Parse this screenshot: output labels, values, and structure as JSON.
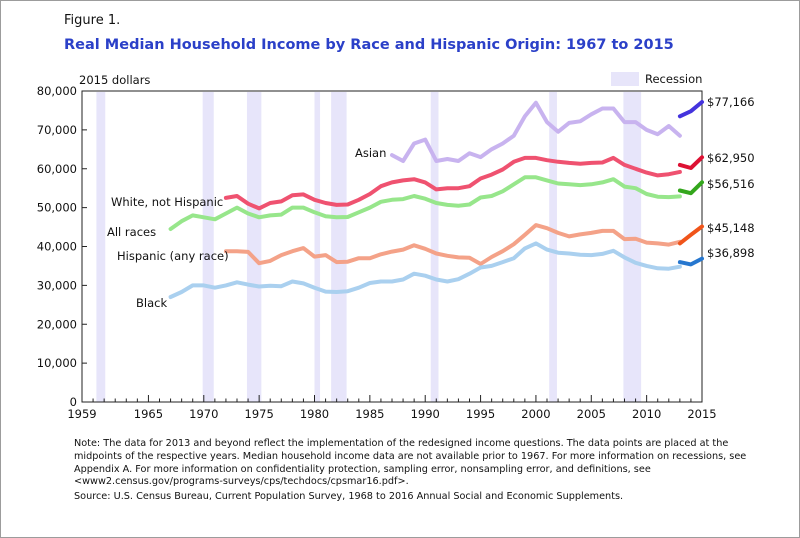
{
  "figure_label": "Figure 1.",
  "title": "Real Median Household Income by Race and Hispanic Origin: 1967 to 2015",
  "note": "Note: The data for 2013 and beyond reflect the implementation of the redesigned income questions. The data points are placed at the midpoints of the respective years. Median household income data are not available prior to 1967. For more information on recessions, see Appendix A. For more information on confidentiality protection, sampling error, nonsampling error, and definitions, see <www2.census.gov/programs-surveys/cps/techdocs/cpsmar16.pdf>.",
  "source": "Source: U.S. Census Bureau, Current Population Survey, 1968 to 2016 Annual Social and Economic Supplements.",
  "chart_data": {
    "type": "line",
    "title": "Real Median Household Income by Race and Hispanic Origin: 1967 to 2015",
    "ylabel": "2015 dollars",
    "xlim": [
      1959,
      2015
    ],
    "ylim": [
      0,
      80000
    ],
    "x_ticks": [
      1959,
      1965,
      1970,
      1975,
      1980,
      1985,
      1990,
      1995,
      2000,
      2005,
      2010,
      2015
    ],
    "y_ticks": [
      {
        "value": 0,
        "label": "0"
      },
      {
        "value": 10000,
        "label": "10,000"
      },
      {
        "value": 20000,
        "label": "20,000"
      },
      {
        "value": 30000,
        "label": "30,000"
      },
      {
        "value": 40000,
        "label": "40,000"
      },
      {
        "value": 50000,
        "label": "50,000"
      },
      {
        "value": 60000,
        "label": "60,000"
      },
      {
        "value": 70000,
        "label": "70,000"
      },
      {
        "value": 80000,
        "label": "80,000"
      }
    ],
    "grid": false,
    "legend": {
      "label": "Recession",
      "position": "top-right"
    },
    "recessions": [
      [
        1960.3,
        1961.1
      ],
      [
        1969.9,
        1970.9
      ],
      [
        1973.9,
        1975.2
      ],
      [
        1980.0,
        1980.5
      ],
      [
        1981.5,
        1982.9
      ],
      [
        1990.5,
        1991.2
      ],
      [
        2001.2,
        2001.9
      ],
      [
        2007.9,
        2009.5
      ]
    ],
    "series": [
      {
        "name": "Asian",
        "color": "#c8b3ef",
        "color_redesign": "#4433dd",
        "end_label": "$77,166",
        "x": [
          1987,
          1988,
          1989,
          1990,
          1991,
          1992,
          1993,
          1994,
          1995,
          1996,
          1997,
          1998,
          1999,
          2000,
          2001,
          2002,
          2003,
          2004,
          2005,
          2006,
          2007,
          2008,
          2009,
          2010,
          2011,
          2012,
          2013
        ],
        "y": [
          63500,
          62000,
          66500,
          67500,
          62000,
          62500,
          62000,
          64000,
          63000,
          65000,
          66500,
          68500,
          73500,
          77000,
          72000,
          69500,
          71800,
          72200,
          74000,
          75500,
          75500,
          72000,
          72000,
          70000,
          68900,
          71000,
          68500
        ],
        "x_redesign": [
          2013,
          2014,
          2015
        ],
        "y_redesign": [
          73500,
          74800,
          77166
        ]
      },
      {
        "name": "White, not Hispanic",
        "color": "#ef5270",
        "color_redesign": "#dd1133",
        "end_label": "$62,950",
        "x": [
          1972,
          1973,
          1974,
          1975,
          1976,
          1977,
          1978,
          1979,
          1980,
          1981,
          1982,
          1983,
          1984,
          1985,
          1986,
          1987,
          1988,
          1989,
          1990,
          1991,
          1992,
          1993,
          1994,
          1995,
          1996,
          1997,
          1998,
          1999,
          2000,
          2001,
          2002,
          2003,
          2004,
          2005,
          2006,
          2007,
          2008,
          2009,
          2010,
          2011,
          2012,
          2013
        ],
        "y": [
          52500,
          53000,
          51000,
          49800,
          51200,
          51600,
          53200,
          53400,
          52000,
          51200,
          50700,
          50800,
          52000,
          53500,
          55500,
          56500,
          57000,
          57300,
          56500,
          54700,
          55000,
          55000,
          55500,
          57500,
          58500,
          59800,
          61800,
          62800,
          62800,
          62200,
          61800,
          61500,
          61300,
          61500,
          61600,
          62800,
          61000,
          60000,
          59000,
          58300,
          58600,
          59200
        ],
        "x_redesign": [
          2013,
          2014,
          2015
        ],
        "y_redesign": [
          61000,
          60200,
          62950
        ]
      },
      {
        "name": "All races",
        "color": "#97e68b",
        "color_redesign": "#33a61c",
        "end_label": "$56,516",
        "x": [
          1967,
          1968,
          1969,
          1970,
          1971,
          1972,
          1973,
          1974,
          1975,
          1976,
          1977,
          1978,
          1979,
          1980,
          1981,
          1982,
          1983,
          1984,
          1985,
          1986,
          1987,
          1988,
          1989,
          1990,
          1991,
          1992,
          1993,
          1994,
          1995,
          1996,
          1997,
          1998,
          1999,
          2000,
          2001,
          2002,
          2003,
          2004,
          2005,
          2006,
          2007,
          2008,
          2009,
          2010,
          2011,
          2012,
          2013
        ],
        "y": [
          44500,
          46500,
          48000,
          47500,
          47000,
          48500,
          50000,
          48500,
          47500,
          48000,
          48200,
          50000,
          50000,
          48800,
          47800,
          47500,
          47600,
          48800,
          50000,
          51500,
          52000,
          52200,
          53000,
          52300,
          51200,
          50700,
          50500,
          50800,
          52600,
          53000,
          54200,
          56000,
          57800,
          57800,
          57000,
          56200,
          56000,
          55800,
          56000,
          56500,
          57300,
          55400,
          55000,
          53500,
          52800,
          52700,
          52900
        ],
        "x_redesign": [
          2013,
          2014,
          2015
        ],
        "y_redesign": [
          54400,
          53700,
          56516
        ]
      },
      {
        "name": "Hispanic (any race)",
        "color": "#f4a288",
        "color_redesign": "#f0541a",
        "end_label": "$45,148",
        "x": [
          1972,
          1973,
          1974,
          1975,
          1976,
          1977,
          1978,
          1979,
          1980,
          1981,
          1982,
          1983,
          1984,
          1985,
          1986,
          1987,
          1988,
          1989,
          1990,
          1991,
          1992,
          1993,
          1994,
          1995,
          1996,
          1997,
          1998,
          1999,
          2000,
          2001,
          2002,
          2003,
          2004,
          2005,
          2006,
          2007,
          2008,
          2009,
          2010,
          2011,
          2012,
          2013
        ],
        "y": [
          38800,
          38800,
          38600,
          35700,
          36300,
          37800,
          38800,
          39600,
          37400,
          37800,
          36000,
          36100,
          37000,
          37000,
          38000,
          38700,
          39200,
          40300,
          39400,
          38200,
          37600,
          37200,
          37100,
          35500,
          37300,
          38800,
          40600,
          43000,
          45500,
          44700,
          43500,
          42600,
          43100,
          43500,
          44000,
          44000,
          41900,
          42000,
          41000,
          40800,
          40500,
          41200
        ],
        "x_redesign": [
          2013,
          2014,
          2015
        ],
        "y_redesign": [
          40800,
          43000,
          45148
        ]
      },
      {
        "name": "Black",
        "color": "#aad0ef",
        "color_redesign": "#2677cf",
        "end_label": "$36,898",
        "x": [
          1967,
          1968,
          1969,
          1970,
          1971,
          1972,
          1973,
          1974,
          1975,
          1976,
          1977,
          1978,
          1979,
          1980,
          1981,
          1982,
          1983,
          1984,
          1985,
          1986,
          1987,
          1988,
          1989,
          1990,
          1991,
          1992,
          1993,
          1994,
          1995,
          1996,
          1997,
          1998,
          1999,
          2000,
          2001,
          2002,
          2003,
          2004,
          2005,
          2006,
          2007,
          2008,
          2009,
          2010,
          2011,
          2012,
          2013
        ],
        "y": [
          27000,
          28300,
          30000,
          30000,
          29400,
          30000,
          30800,
          30200,
          29700,
          29900,
          29800,
          31000,
          30500,
          29400,
          28400,
          28300,
          28500,
          29400,
          30600,
          31000,
          31000,
          31500,
          33000,
          32500,
          31500,
          31000,
          31600,
          33000,
          34600,
          35000,
          36000,
          37000,
          39500,
          40800,
          39200,
          38400,
          38200,
          37900,
          37800,
          38100,
          38900,
          37200,
          35800,
          35000,
          34400,
          34300,
          34800
        ],
        "x_redesign": [
          2013,
          2014,
          2015
        ],
        "y_redesign": [
          36000,
          35400,
          36898
        ]
      }
    ]
  }
}
